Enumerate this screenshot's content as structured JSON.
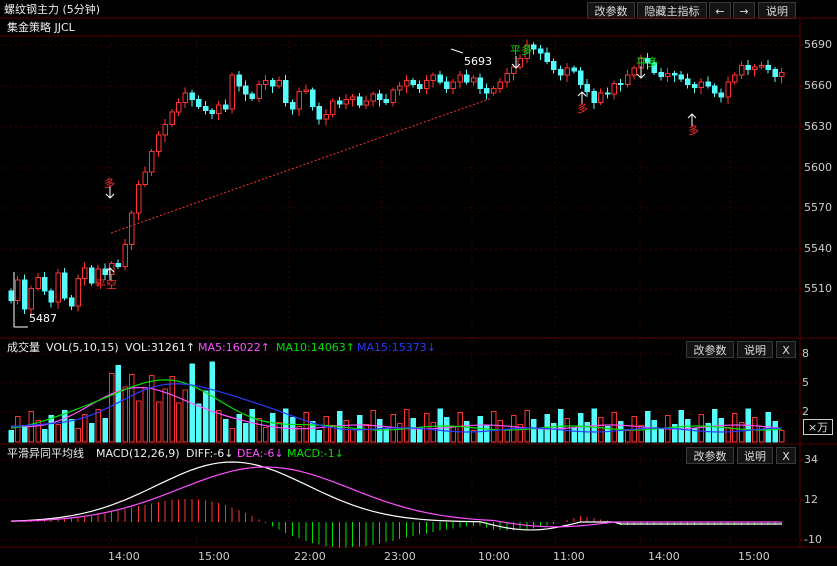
{
  "header": {
    "title": "螺纹钢主力 (5分钟)",
    "strategy": "集金策略 JJCL",
    "buttons": {
      "params": "改参数",
      "hide_indicator": "隐藏主指标",
      "left": "←",
      "right": "→",
      "help": "说明"
    }
  },
  "price_axis": [
    "5690",
    "5660",
    "5630",
    "5600",
    "5570",
    "5540",
    "5510"
  ],
  "price_labels": {
    "low": "5487",
    "high": "5693"
  },
  "signals": {
    "long": "多",
    "close_short": "平空",
    "close_long": "平多"
  },
  "volume": {
    "title": "成交量",
    "indicator": "VOL(5,10,15)",
    "vol": "VOL:31261↑",
    "ma5": "MA5:16022↑",
    "ma10": "MA10:14063↑",
    "ma15": "MA15:15373↓",
    "axis": [
      "8",
      "5",
      "2"
    ],
    "unit": "×万",
    "buttons": {
      "params": "改参数",
      "help": "说明",
      "close": "X"
    }
  },
  "macd": {
    "title": "平滑异同平均线",
    "indicator": "MACD(12,26,9)",
    "diff": "DIFF:-6↓",
    "dea": "DEA:-6↓",
    "macd": "MACD:-1↓",
    "axis": [
      "34",
      "12",
      "-10"
    ],
    "buttons": {
      "params": "改参数",
      "help": "说明",
      "close": "X"
    }
  },
  "time_axis": [
    "14:00",
    "15:00",
    "22:00",
    "23:00",
    "10:00",
    "11:00",
    "14:00",
    "15:00"
  ],
  "colors": {
    "up": "#ff3232",
    "down": "#54fcfc",
    "ma5": "#ff50ff",
    "ma10": "#00e000",
    "ma15": "#2a3aff",
    "dea": "#ff50ff",
    "diff": "#ffffff"
  }
}
